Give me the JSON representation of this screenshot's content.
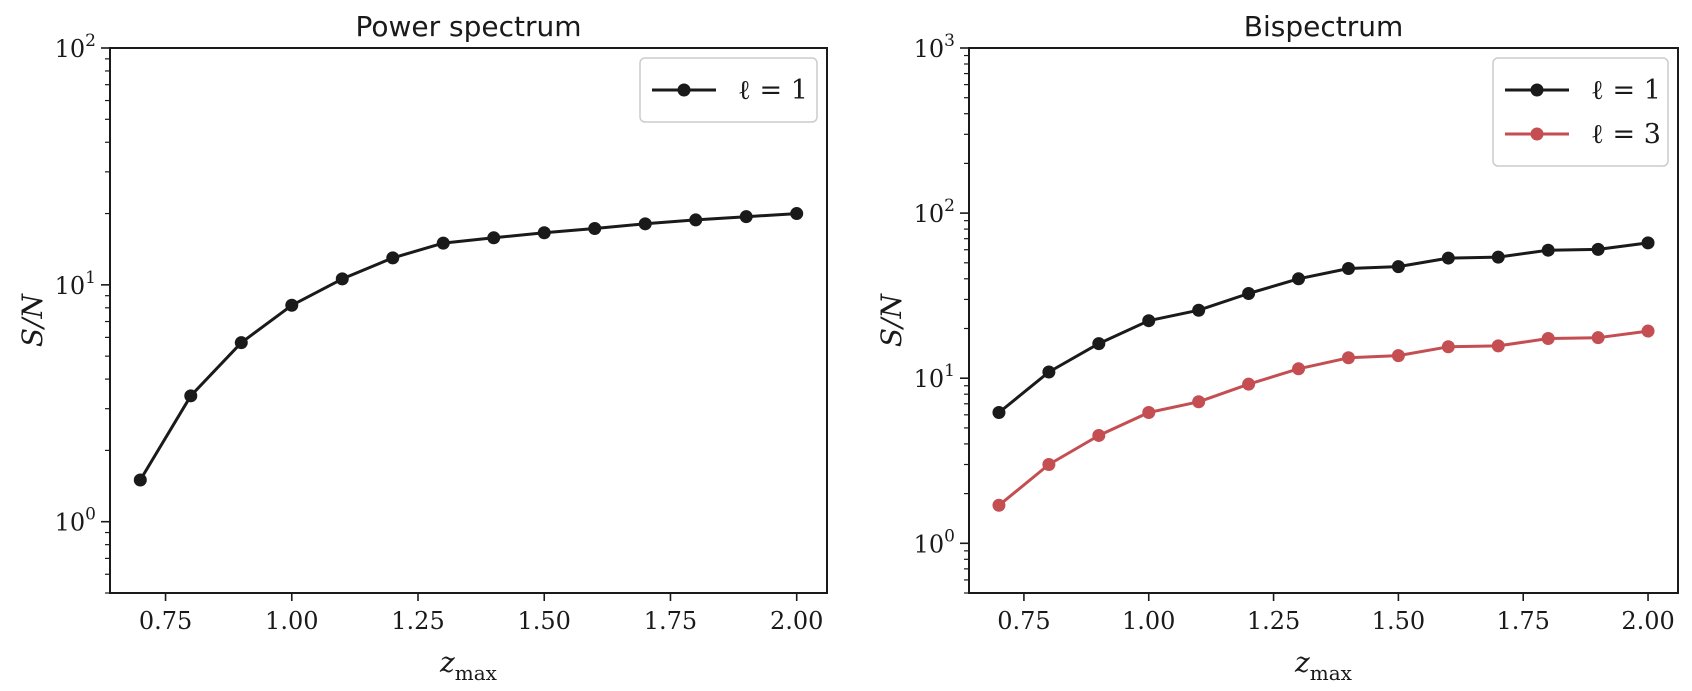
{
  "chart_data": [
    {
      "type": "line",
      "title": "Power spectrum",
      "xlabel": "z_max",
      "ylabel": "S/N",
      "xlim": [
        0.64,
        2.06
      ],
      "ylim": [
        0.5,
        100
      ],
      "yscale": "log",
      "xticks": [
        0.75,
        1.0,
        1.25,
        1.5,
        1.75,
        2.0
      ],
      "xtick_labels": [
        "0.75",
        "1.00",
        "1.25",
        "1.50",
        "1.75",
        "2.00"
      ],
      "yticks": [
        1,
        10,
        100
      ],
      "ytick_labels": [
        "10",
        "10",
        "10"
      ],
      "ytick_exponents": [
        "0",
        "1",
        "2"
      ],
      "legend_loc": "upper right",
      "x": [
        0.7,
        0.8,
        0.9,
        1.0,
        1.1,
        1.2,
        1.3,
        1.4,
        1.5,
        1.6,
        1.7,
        1.8,
        1.9,
        2.0
      ],
      "series": [
        {
          "name": "ℓ = 1",
          "color": "#1a1a1a",
          "values": [
            1.5,
            3.4,
            5.7,
            8.2,
            10.6,
            13.0,
            15.0,
            15.8,
            16.6,
            17.3,
            18.1,
            18.8,
            19.4,
            20.0
          ]
        }
      ]
    },
    {
      "type": "line",
      "title": "Bispectrum",
      "xlabel": "z_max",
      "ylabel": "S/N",
      "xlim": [
        0.64,
        2.06
      ],
      "ylim": [
        0.5,
        1000
      ],
      "yscale": "log",
      "xticks": [
        0.75,
        1.0,
        1.25,
        1.5,
        1.75,
        2.0
      ],
      "xtick_labels": [
        "0.75",
        "1.00",
        "1.25",
        "1.50",
        "1.75",
        "2.00"
      ],
      "yticks": [
        1,
        10,
        100,
        1000
      ],
      "ytick_labels": [
        "10",
        "10",
        "10",
        "10"
      ],
      "ytick_exponents": [
        "0",
        "1",
        "2",
        "3"
      ],
      "legend_loc": "upper right",
      "x": [
        0.7,
        0.8,
        0.9,
        1.0,
        1.1,
        1.2,
        1.3,
        1.4,
        1.5,
        1.6,
        1.7,
        1.8,
        1.9,
        2.0
      ],
      "series": [
        {
          "name": "ℓ = 1",
          "color": "#1a1a1a",
          "values": [
            6.2,
            10.9,
            16.2,
            22.3,
            25.8,
            32.6,
            40.0,
            46.2,
            47.4,
            53.4,
            54.1,
            59.6,
            60.3,
            66.0
          ]
        },
        {
          "name": "ℓ = 3",
          "color": "#c44e52",
          "values": [
            1.7,
            3.0,
            4.5,
            6.2,
            7.2,
            9.2,
            11.4,
            13.3,
            13.7,
            15.5,
            15.7,
            17.4,
            17.6,
            19.3
          ]
        }
      ]
    }
  ]
}
